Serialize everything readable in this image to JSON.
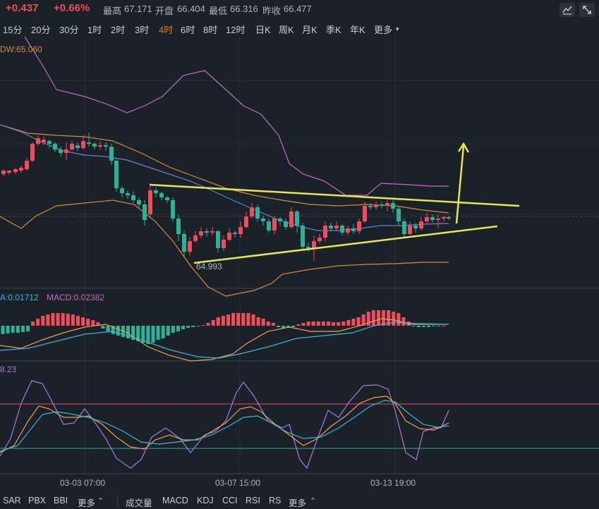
{
  "quote": {
    "change": "+0.437",
    "change_pct": "+0.66%",
    "high_label": "最高",
    "high": "67.171",
    "open_label": "开盘",
    "open": "66.404",
    "low_label": "最低",
    "low": "66.316",
    "prev_close_label": "昨收",
    "prev_close": "66.477"
  },
  "periods": [
    "15分",
    "20分",
    "30分",
    "1时",
    "2时",
    "3时",
    "4时",
    "6时",
    "8时",
    "12时",
    "日K",
    "周K",
    "月K",
    "季K",
    "年K",
    "更多"
  ],
  "active_period": "4时",
  "main_chart": {
    "indicator_label": "DW:65.060",
    "min_price_label": "64.993"
  },
  "macd_panel": {
    "label_a": "A:0.01712",
    "label_b": "MACD:0.02382"
  },
  "rsi_panel": {
    "label": "8.23"
  },
  "x_axis": {
    "ticks": [
      "03-03 07:00",
      "03-07 15:00",
      "03-13 19:00"
    ]
  },
  "bottom_tabs_left": [
    "SAR",
    "PBX",
    "BBI",
    "更多"
  ],
  "bottom_tabs_right": [
    "成交量",
    "MACD",
    "KDJ",
    "CCI",
    "RSI",
    "RS",
    "更多"
  ],
  "colors": {
    "up": "#f04d5a",
    "down": "#2bb39a",
    "accent": "#f0742f",
    "trendline": "#e8e84a",
    "bb_outer": "#c66bc4",
    "ma_slow": "#d98a3e",
    "ma_fast": "#6a7fd6"
  }
}
